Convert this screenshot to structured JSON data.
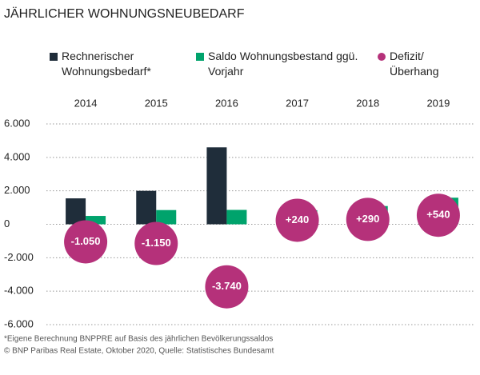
{
  "chart_data": {
    "type": "bar",
    "title": "JÄHRLICHER WOHNUNGSNEUBEDARF",
    "categories": [
      "2014",
      "2015",
      "2016",
      "2017",
      "2018",
      "2019"
    ],
    "series": [
      {
        "name": "Rechnerischer Wohnungsbedarf*",
        "color": "#1f2d3a",
        "values": [
          1550,
          2000,
          4600,
          600,
          800,
          1050
        ]
      },
      {
        "name": "Saldo Wohnungsbestand ggü. Vorjahr",
        "color": "#00a36c",
        "values": [
          500,
          850,
          860,
          840,
          1090,
          1590
        ]
      },
      {
        "name": "Defizit/ Überhang",
        "color": "#b5317a",
        "type": "circle",
        "values": [
          -1050,
          -1150,
          -3740,
          240,
          290,
          540
        ],
        "value_labels": [
          "-1.050",
          "-1.150",
          "-3.740",
          "+240",
          "+290",
          "+540"
        ]
      }
    ],
    "ylim": [
      -6000,
      6000
    ],
    "yticks": [
      {
        "value": 6000,
        "label": "6.000"
      },
      {
        "value": 4000,
        "label": "4.000"
      },
      {
        "value": 2000,
        "label": "2.000"
      },
      0,
      {
        "value": -2000,
        "label": "-2.000"
      },
      {
        "value": -4000,
        "label": "-4.000"
      },
      {
        "value": -6000,
        "label": "-6.000"
      }
    ],
    "grid": true,
    "footnotes": [
      "*Eigene Berechnung BNPPRE auf Basis des jährlichen Bevölkerungssaldos",
      "© BNP Paribas Real Estate, Oktober 2020, Quelle: Statistisches Bundesamt"
    ]
  }
}
